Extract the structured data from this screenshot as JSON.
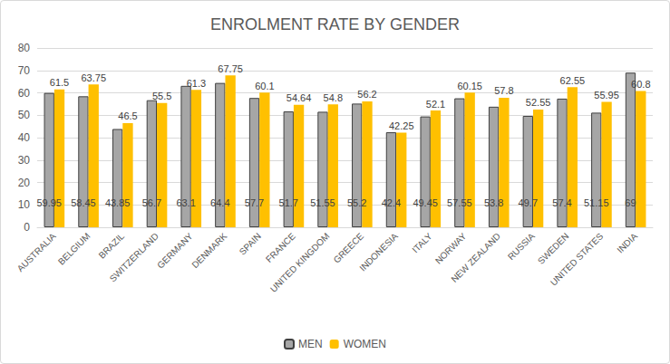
{
  "chart_data": {
    "type": "bar",
    "title": "ENROLMENT RATE BY GENDER",
    "categories": [
      "AUSTRALIA",
      "BELGIUM",
      "BRAZIL",
      "SWITZERLAND",
      "GERMANY",
      "DENMARK",
      "SPAIN",
      "FRANCE",
      "UNITED KINGDOM",
      "GREECE",
      "INDONESIA",
      "ITALY",
      "NORWAY",
      "NEW ZEALAND",
      "RUSSIA",
      "SWEDEN",
      "UNITED STATES",
      "INDIA"
    ],
    "series": [
      {
        "name": "MEN",
        "color": "#a6a6a6",
        "values": [
          59.95,
          58.45,
          43.85,
          56.7,
          63.1,
          64.4,
          57.7,
          51.7,
          51.55,
          55.2,
          42.4,
          49.45,
          57.55,
          53.8,
          49.7,
          57.4,
          51.15,
          69
        ]
      },
      {
        "name": "WOMEN",
        "color": "#ffc000",
        "values": [
          61.5,
          63.75,
          46.5,
          55.5,
          61.3,
          67.75,
          60.1,
          54.64,
          54.8,
          56.2,
          42.25,
          52.1,
          60.15,
          57.8,
          52.55,
          62.55,
          55.95,
          60.8
        ]
      }
    ],
    "ylim": [
      0,
      80
    ],
    "yticks": [
      0,
      10,
      20,
      30,
      40,
      50,
      60,
      70,
      80
    ],
    "grid": true,
    "legend": "bottom",
    "data_labels": true
  }
}
